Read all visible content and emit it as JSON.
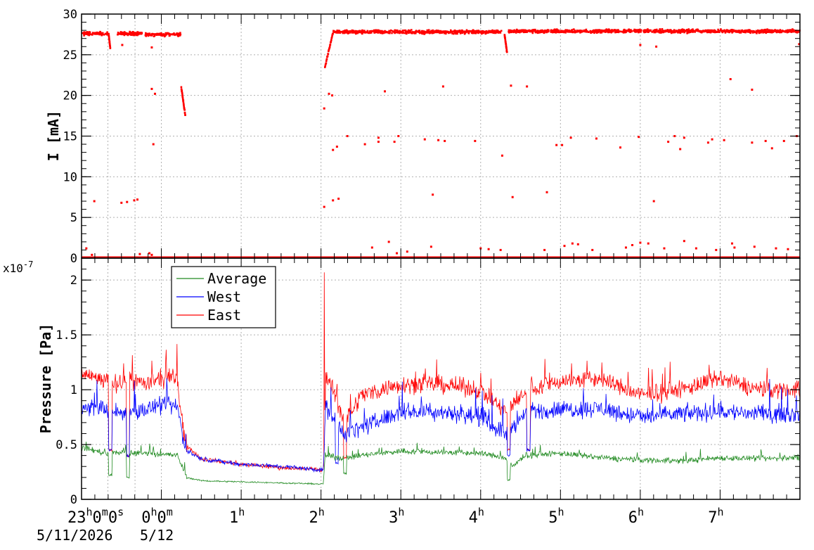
{
  "chart_data": [
    {
      "type": "scatter",
      "ylabel": "I [mA]",
      "ylim": [
        0,
        30
      ],
      "yticks": [
        0,
        5,
        10,
        15,
        20,
        25,
        30
      ],
      "xlim": [
        -1,
        8
      ],
      "grid": true,
      "x_tick_hours": [
        {
          "x": 0,
          "label": "0",
          "suffix": "m"
        },
        {
          "x": 1,
          "label": "1"
        },
        {
          "x": 2,
          "label": "2"
        },
        {
          "x": 3,
          "label": "3"
        },
        {
          "x": 4,
          "label": "4"
        },
        {
          "x": 5,
          "label": "5"
        },
        {
          "x": 6,
          "label": "6"
        },
        {
          "x": 7,
          "label": "7"
        }
      ],
      "x_start_label": {
        "base": "23",
        "parts": [
          {
            "sup": "h"
          },
          {
            "text": "0"
          },
          {
            "sup": "m"
          },
          {
            "text": "0"
          },
          {
            "sup": "s"
          }
        ]
      },
      "date_labels": [
        "5/11/2026",
        "5/12"
      ],
      "series": [
        {
          "color": "#ff0000",
          "segments": [
            {
              "x": [
                -1.0,
                -0.67
              ],
              "base": 27.6,
              "jitter": 0.3
            },
            {
              "x": [
                -0.55,
                -0.24
              ],
              "base": 27.6,
              "jitter": 0.3
            },
            {
              "x": [
                -0.2,
                0.25
              ],
              "base": 27.5,
              "jitter": 0.3
            },
            {
              "x": [
                2.15,
                4.27
              ],
              "base": 27.8,
              "jitter": 0.3
            },
            {
              "x": [
                4.35,
                8.0
              ],
              "base": 27.9,
              "jitter": 0.3
            }
          ],
          "ramps": [
            {
              "x": [
                0.25,
                0.3
              ],
              "y": [
                21.0,
                17.5
              ]
            },
            {
              "x": [
                2.05,
                2.15
              ],
              "y": [
                23.5,
                27.7
              ]
            },
            {
              "x": [
                -0.66,
                -0.64
              ],
              "y": [
                27.5,
                25.8
              ]
            },
            {
              "x": [
                4.3,
                4.33
              ],
              "y": [
                27.4,
                25.3
              ]
            }
          ],
          "baseline": {
            "x": [
              -1.0,
              8.0
            ],
            "y": 0.0
          },
          "outliers": [
            [
              -0.84,
              7.0
            ],
            [
              -0.5,
              6.8
            ],
            [
              -0.43,
              6.9
            ],
            [
              -0.34,
              7.1
            ],
            [
              -0.3,
              7.2
            ],
            [
              -0.12,
              20.8
            ],
            [
              -0.08,
              20.2
            ],
            [
              -0.1,
              14.0
            ],
            [
              -0.12,
              25.9
            ],
            [
              -0.49,
              26.2
            ],
            [
              2.04,
              18.4
            ],
            [
              2.04,
              6.3
            ],
            [
              2.1,
              20.2
            ],
            [
              2.14,
              20.0
            ],
            [
              2.15,
              13.3
            ],
            [
              2.2,
              13.7
            ],
            [
              2.15,
              7.1
            ],
            [
              2.22,
              7.3
            ],
            [
              2.33,
              15.0
            ],
            [
              2.55,
              14.0
            ],
            [
              2.72,
              14.3
            ],
            [
              2.72,
              14.8
            ],
            [
              2.8,
              20.5
            ],
            [
              2.92,
              14.3
            ],
            [
              2.97,
              15.0
            ],
            [
              3.3,
              14.6
            ],
            [
              3.4,
              7.8
            ],
            [
              3.47,
              14.5
            ],
            [
              3.53,
              21.1
            ],
            [
              3.55,
              14.4
            ],
            [
              3.93,
              14.4
            ],
            [
              4.27,
              12.6
            ],
            [
              4.38,
              21.2
            ],
            [
              4.4,
              7.5
            ],
            [
              4.58,
              21.1
            ],
            [
              4.83,
              8.1
            ],
            [
              4.95,
              13.9
            ],
            [
              5.02,
              13.9
            ],
            [
              5.13,
              14.8
            ],
            [
              5.45,
              14.7
            ],
            [
              5.75,
              13.6
            ],
            [
              5.98,
              14.9
            ],
            [
              6.0,
              26.2
            ],
            [
              6.17,
              7.0
            ],
            [
              6.2,
              26.0
            ],
            [
              6.35,
              14.3
            ],
            [
              6.43,
              15.0
            ],
            [
              6.5,
              13.4
            ],
            [
              6.55,
              14.8
            ],
            [
              6.85,
              14.2
            ],
            [
              6.9,
              14.6
            ],
            [
              7.05,
              14.5
            ],
            [
              7.13,
              22.0
            ],
            [
              7.4,
              20.7
            ],
            [
              7.4,
              14.2
            ],
            [
              7.57,
              14.4
            ],
            [
              7.65,
              13.5
            ],
            [
              7.8,
              14.4
            ],
            [
              7.96,
              15.0
            ],
            [
              7.99,
              26.3
            ],
            [
              -0.94,
              1.2
            ],
            [
              -0.87,
              0.4
            ],
            [
              -0.27,
              0.5
            ],
            [
              -0.15,
              0.6
            ],
            [
              -0.12,
              0.4
            ],
            [
              2.64,
              1.3
            ],
            [
              2.85,
              2.0
            ],
            [
              2.95,
              0.6
            ],
            [
              3.08,
              0.8
            ],
            [
              3.38,
              1.4
            ],
            [
              4.0,
              1.2
            ],
            [
              4.1,
              1.1
            ],
            [
              4.25,
              1.0
            ],
            [
              4.8,
              1.0
            ],
            [
              5.05,
              1.5
            ],
            [
              5.15,
              1.8
            ],
            [
              5.22,
              1.7
            ],
            [
              5.4,
              1.0
            ],
            [
              5.82,
              1.3
            ],
            [
              5.9,
              1.6
            ],
            [
              6.0,
              1.9
            ],
            [
              6.1,
              1.8
            ],
            [
              6.3,
              1.2
            ],
            [
              6.55,
              2.1
            ],
            [
              6.7,
              1.2
            ],
            [
              6.95,
              1.0
            ],
            [
              7.15,
              1.8
            ],
            [
              7.18,
              1.3
            ],
            [
              7.43,
              1.4
            ],
            [
              7.7,
              1.2
            ],
            [
              7.85,
              1.1
            ]
          ]
        }
      ]
    },
    {
      "type": "line",
      "ylabel": "Pressure [Pa]",
      "y_exponent": "x10",
      "y_exponent_power": "-7",
      "ylim": [
        0,
        2.2
      ],
      "yticks": [
        0,
        0.5,
        1,
        1.5,
        2
      ],
      "ytick_labels": [
        "0",
        "0.5",
        "1",
        "1.5",
        "2"
      ],
      "xlim": [
        -1,
        8
      ],
      "grid": true,
      "legend_position": "top-left",
      "series": [
        {
          "name": "Average",
          "color": "#228b22",
          "profile": [
            [
              -1.0,
              0.47
            ],
            [
              -0.85,
              0.45
            ],
            [
              -0.7,
              0.42
            ],
            [
              -0.5,
              0.43
            ],
            [
              -0.3,
              0.42
            ],
            [
              -0.1,
              0.42
            ],
            [
              0.2,
              0.4
            ],
            [
              0.32,
              0.2
            ],
            [
              0.5,
              0.17
            ],
            [
              1.0,
              0.16
            ],
            [
              1.5,
              0.15
            ],
            [
              2.0,
              0.14
            ],
            [
              2.03,
              0.14
            ],
            [
              2.05,
              0.4
            ],
            [
              2.3,
              0.37
            ],
            [
              2.5,
              0.4
            ],
            [
              3.0,
              0.44
            ],
            [
              3.5,
              0.43
            ],
            [
              4.0,
              0.42
            ],
            [
              4.3,
              0.38
            ],
            [
              4.4,
              0.3
            ],
            [
              4.55,
              0.4
            ],
            [
              5.0,
              0.42
            ],
            [
              5.5,
              0.38
            ],
            [
              6.0,
              0.36
            ],
            [
              6.5,
              0.35
            ],
            [
              7.0,
              0.38
            ],
            [
              7.5,
              0.37
            ],
            [
              8.0,
              0.38
            ]
          ],
          "noise": 0.04,
          "dips": [
            [
              -0.64,
              0.22
            ],
            [
              -0.42,
              0.2
            ],
            [
              4.35,
              0.18
            ],
            [
              2.3,
              0.24
            ]
          ]
        },
        {
          "name": "West",
          "color": "#0000ff",
          "profile": [
            [
              -1.0,
              0.82
            ],
            [
              -0.8,
              0.85
            ],
            [
              -0.6,
              0.8
            ],
            [
              -0.4,
              0.78
            ],
            [
              -0.2,
              0.82
            ],
            [
              0.0,
              0.85
            ],
            [
              0.2,
              0.85
            ],
            [
              0.3,
              0.45
            ],
            [
              0.5,
              0.37
            ],
            [
              1.0,
              0.32
            ],
            [
              1.5,
              0.3
            ],
            [
              2.0,
              0.27
            ],
            [
              2.03,
              0.27
            ],
            [
              2.06,
              0.85
            ],
            [
              2.3,
              0.6
            ],
            [
              2.5,
              0.65
            ],
            [
              3.0,
              0.8
            ],
            [
              3.5,
              0.8
            ],
            [
              4.0,
              0.75
            ],
            [
              4.3,
              0.6
            ],
            [
              4.6,
              0.8
            ],
            [
              5.0,
              0.82
            ],
            [
              5.5,
              0.83
            ],
            [
              6.0,
              0.75
            ],
            [
              6.5,
              0.78
            ],
            [
              7.0,
              0.8
            ],
            [
              7.5,
              0.78
            ],
            [
              8.0,
              0.78
            ]
          ],
          "noise": 0.12,
          "dips": [
            [
              -0.64,
              0.45
            ],
            [
              -0.42,
              0.4
            ],
            [
              2.2,
              0.33
            ],
            [
              4.35,
              0.4
            ],
            [
              4.6,
              0.45
            ]
          ]
        },
        {
          "name": "East",
          "color": "#ff0000",
          "profile": [
            [
              -1.0,
              1.15
            ],
            [
              -0.8,
              1.1
            ],
            [
              -0.6,
              1.05
            ],
            [
              -0.4,
              1.1
            ],
            [
              -0.2,
              1.05
            ],
            [
              0.0,
              1.1
            ],
            [
              0.2,
              1.1
            ],
            [
              0.3,
              0.5
            ],
            [
              0.5,
              0.37
            ],
            [
              1.0,
              0.32
            ],
            [
              1.5,
              0.29
            ],
            [
              2.0,
              0.27
            ],
            [
              2.03,
              0.27
            ],
            [
              2.06,
              1.15
            ],
            [
              2.3,
              0.7
            ],
            [
              2.5,
              0.95
            ],
            [
              3.0,
              1.05
            ],
            [
              3.5,
              1.05
            ],
            [
              4.0,
              1.0
            ],
            [
              4.3,
              0.8
            ],
            [
              4.6,
              1.0
            ],
            [
              5.0,
              1.08
            ],
            [
              5.5,
              1.1
            ],
            [
              6.0,
              0.95
            ],
            [
              6.5,
              1.0
            ],
            [
              7.0,
              1.1
            ],
            [
              7.5,
              1.0
            ],
            [
              8.0,
              1.0
            ]
          ],
          "noise": 0.12,
          "dips": [
            [
              -0.64,
              0.45
            ],
            [
              -0.42,
              0.4
            ],
            [
              2.3,
              0.38
            ],
            [
              4.35,
              0.45
            ],
            [
              4.6,
              0.45
            ]
          ],
          "spikes": [
            [
              2.04,
              2.07
            ]
          ]
        }
      ]
    }
  ]
}
